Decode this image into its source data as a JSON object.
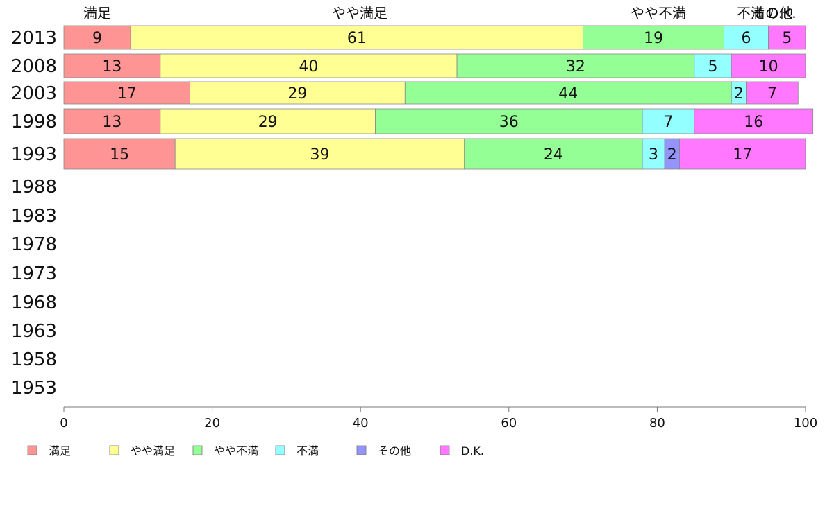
{
  "chart_data": {
    "type": "bar",
    "orientation": "horizontal",
    "stacked": true,
    "categories": [
      "2013",
      "2008",
      "2003",
      "1998",
      "1993",
      "1988",
      "1983",
      "1978",
      "1973",
      "1968",
      "1963",
      "1958",
      "1953"
    ],
    "series": [
      {
        "name": "満足",
        "color": "#ff9494",
        "values": [
          9,
          13,
          17,
          13,
          15,
          null,
          null,
          null,
          null,
          null,
          null,
          null,
          null
        ]
      },
      {
        "name": "やや満足",
        "color": "#ffff94",
        "values": [
          61,
          40,
          29,
          29,
          39,
          null,
          null,
          null,
          null,
          null,
          null,
          null,
          null
        ]
      },
      {
        "name": "やや不満",
        "color": "#94ff94",
        "values": [
          19,
          32,
          44,
          36,
          24,
          null,
          null,
          null,
          null,
          null,
          null,
          null,
          null
        ]
      },
      {
        "name": "不満",
        "color": "#94ffff",
        "values": [
          6,
          5,
          2,
          7,
          3,
          null,
          null,
          null,
          null,
          null,
          null,
          null,
          null
        ]
      },
      {
        "name": "その他",
        "color": "#9494ff",
        "values": [
          0,
          0,
          0,
          0,
          2,
          null,
          null,
          null,
          null,
          null,
          null,
          null,
          null
        ]
      },
      {
        "name": "D.K.",
        "color": "#ff78ff",
        "values": [
          5,
          10,
          7,
          16,
          17,
          null,
          null,
          null,
          null,
          null,
          null,
          null,
          null
        ]
      }
    ],
    "top_labels": [
      "満足",
      "やや満足",
      "やや不満",
      "不満",
      "その他",
      "D.K."
    ],
    "x_ticks": [
      "0",
      "20",
      "40",
      "60",
      "80",
      "100"
    ],
    "xlim": [
      0,
      100
    ],
    "legend_position": "bottom"
  }
}
